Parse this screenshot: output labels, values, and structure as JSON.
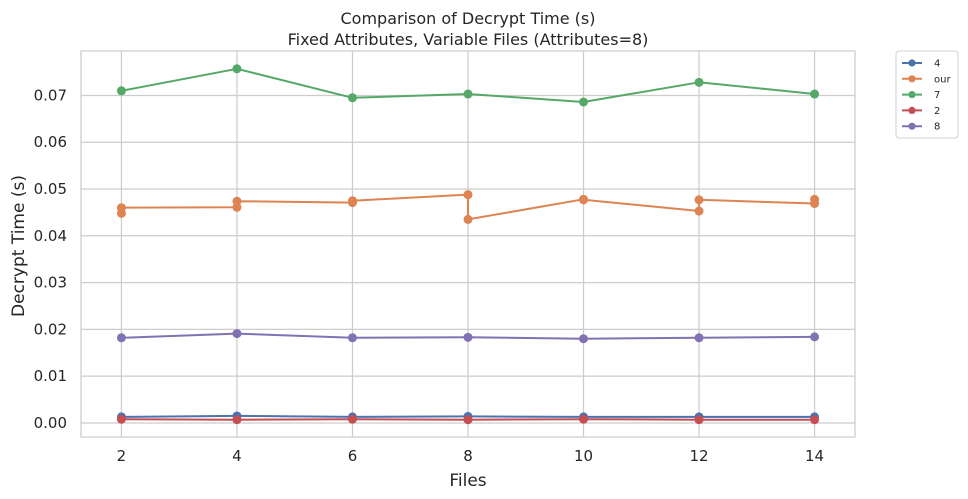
{
  "chart_data": {
    "type": "line",
    "title": "Comparison of Decrypt Time (s)",
    "subtitle": "Fixed Attributes, Variable Files (Attributes=8)",
    "xlabel": "Files",
    "ylabel": "Decrypt Time (s)",
    "xlim": [
      1.3,
      14.7
    ],
    "ylim": [
      -0.003,
      0.0795
    ],
    "xticks": [
      2,
      4,
      6,
      8,
      10,
      12,
      14
    ],
    "yticks": [
      0.0,
      0.01,
      0.02,
      0.03,
      0.04,
      0.05,
      0.06,
      0.07
    ],
    "ytick_labels": [
      "0.00",
      "0.01",
      "0.02",
      "0.03",
      "0.04",
      "0.05",
      "0.06",
      "0.07"
    ],
    "grid": true,
    "legend_position": "outside-top-right",
    "series": [
      {
        "name": "4",
        "color": "#4c72b0",
        "points": [
          [
            2,
            0.0013
          ],
          [
            4,
            0.0015
          ],
          [
            6,
            0.0013
          ],
          [
            8,
            0.0014
          ],
          [
            10,
            0.0013
          ],
          [
            12,
            0.0013
          ],
          [
            14,
            0.0013
          ]
        ]
      },
      {
        "name": "our",
        "color": "#dd8452",
        "points": [
          [
            2,
            0.0448
          ],
          [
            2,
            0.046
          ],
          [
            4,
            0.0461
          ],
          [
            4,
            0.0474
          ],
          [
            6,
            0.0471
          ],
          [
            6,
            0.0475
          ],
          [
            8,
            0.0488
          ],
          [
            8,
            0.0435
          ],
          [
            10,
            0.0478
          ],
          [
            10,
            0.0477
          ],
          [
            12,
            0.0453
          ],
          [
            12,
            0.0477
          ],
          [
            14,
            0.0469
          ],
          [
            14,
            0.0478
          ]
        ]
      },
      {
        "name": "7",
        "color": "#55a868",
        "points": [
          [
            2,
            0.071
          ],
          [
            4,
            0.0757
          ],
          [
            6,
            0.0695
          ],
          [
            8,
            0.0703
          ],
          [
            10,
            0.0686
          ],
          [
            12,
            0.0728
          ],
          [
            14,
            0.0703
          ]
        ]
      },
      {
        "name": "2",
        "color": "#c44e52",
        "points": [
          [
            2,
            0.0008
          ],
          [
            4,
            0.0007
          ],
          [
            6,
            0.0008
          ],
          [
            8,
            0.0007
          ],
          [
            10,
            0.0008
          ],
          [
            12,
            0.0007
          ],
          [
            14,
            0.0007
          ]
        ]
      },
      {
        "name": "8",
        "color": "#8172b3",
        "points": [
          [
            2,
            0.0182
          ],
          [
            4,
            0.0191
          ],
          [
            6,
            0.0182
          ],
          [
            8,
            0.0183
          ],
          [
            10,
            0.018
          ],
          [
            12,
            0.0182
          ],
          [
            14,
            0.0184
          ]
        ]
      }
    ]
  }
}
